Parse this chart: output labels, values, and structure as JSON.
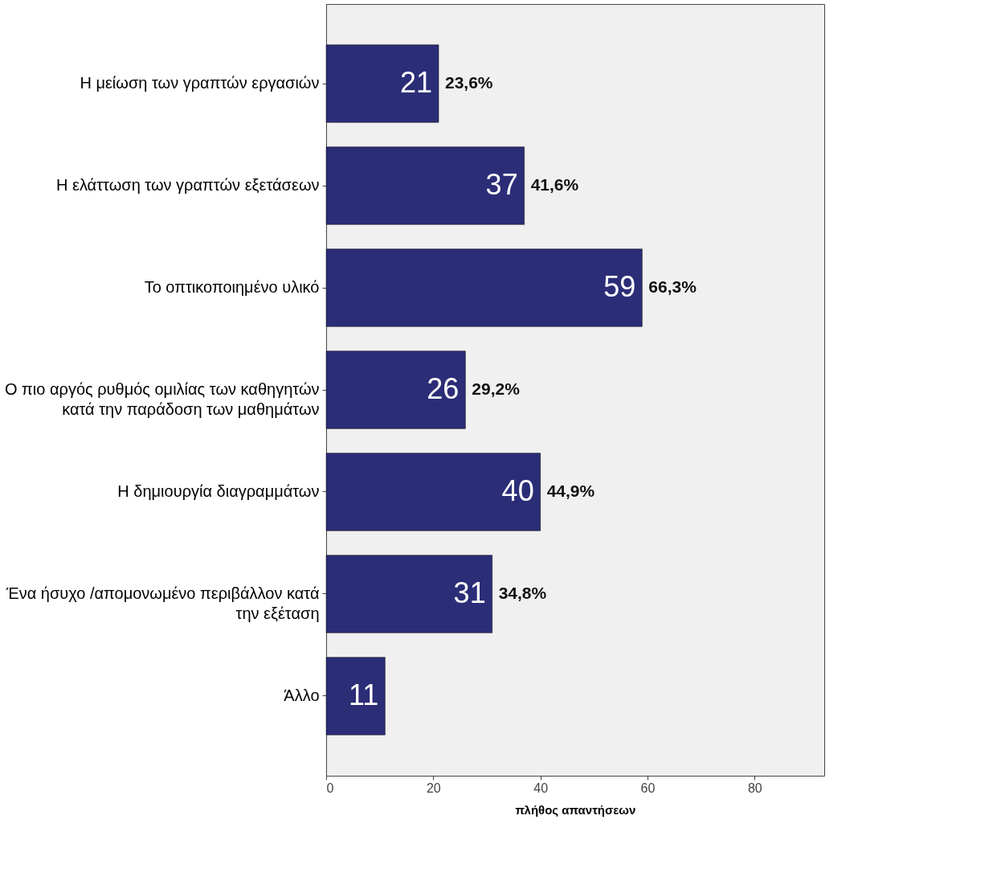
{
  "chart_data": {
    "type": "bar",
    "orientation": "horizontal",
    "xlabel": "πλήθος απαντήσεων",
    "categories": [
      "Η μείωση των γραπτών εργασιών",
      "Η ελάττωση των γραπτών εξετάσεων",
      "Το οπτικοποιημένο υλικό",
      "Ο πιο αργός ρυθμός ομιλίας των καθηγητών\nκατά την παράδοση των μαθημάτων",
      "Η δημιουργία διαγραμμάτων",
      "Ένα ήσυχο /απομονωμένο περιβάλλον κατά\nτην εξέταση",
      "Άλλο"
    ],
    "values": [
      21,
      37,
      59,
      26,
      40,
      31,
      11
    ],
    "color": "#2b2d77",
    "data_labels": true,
    "annotations": [
      {
        "text": "23,6%",
        "x": 21,
        "y": "Η μείωση των γραπτών εργασιών"
      },
      {
        "text": "41,6%",
        "x": 37,
        "y": "Η ελάττωση των γραπτών εξετάσεων"
      },
      {
        "text": "66,3%",
        "x": 59,
        "y": "Το οπτικοποιημένο υλικό"
      },
      {
        "text": "29,2%",
        "x": 26,
        "y": "Ο πιο αργός ρυθμός ομιλίας των καθηγητών\nκατά την παράδοση των μαθημάτων"
      },
      {
        "text": "44,9%",
        "x": 40,
        "y": "Η δημιουργία διαγραμμάτων"
      },
      {
        "text": "34,8%",
        "x": 31,
        "y": "Ένα ήσυχο /απομονωμένο περιβάλλον κατά\nτην εξέταση"
      }
    ],
    "xlim": [
      0,
      93
    ],
    "xticks": [
      0,
      20,
      40,
      60,
      80
    ],
    "grid": false
  }
}
